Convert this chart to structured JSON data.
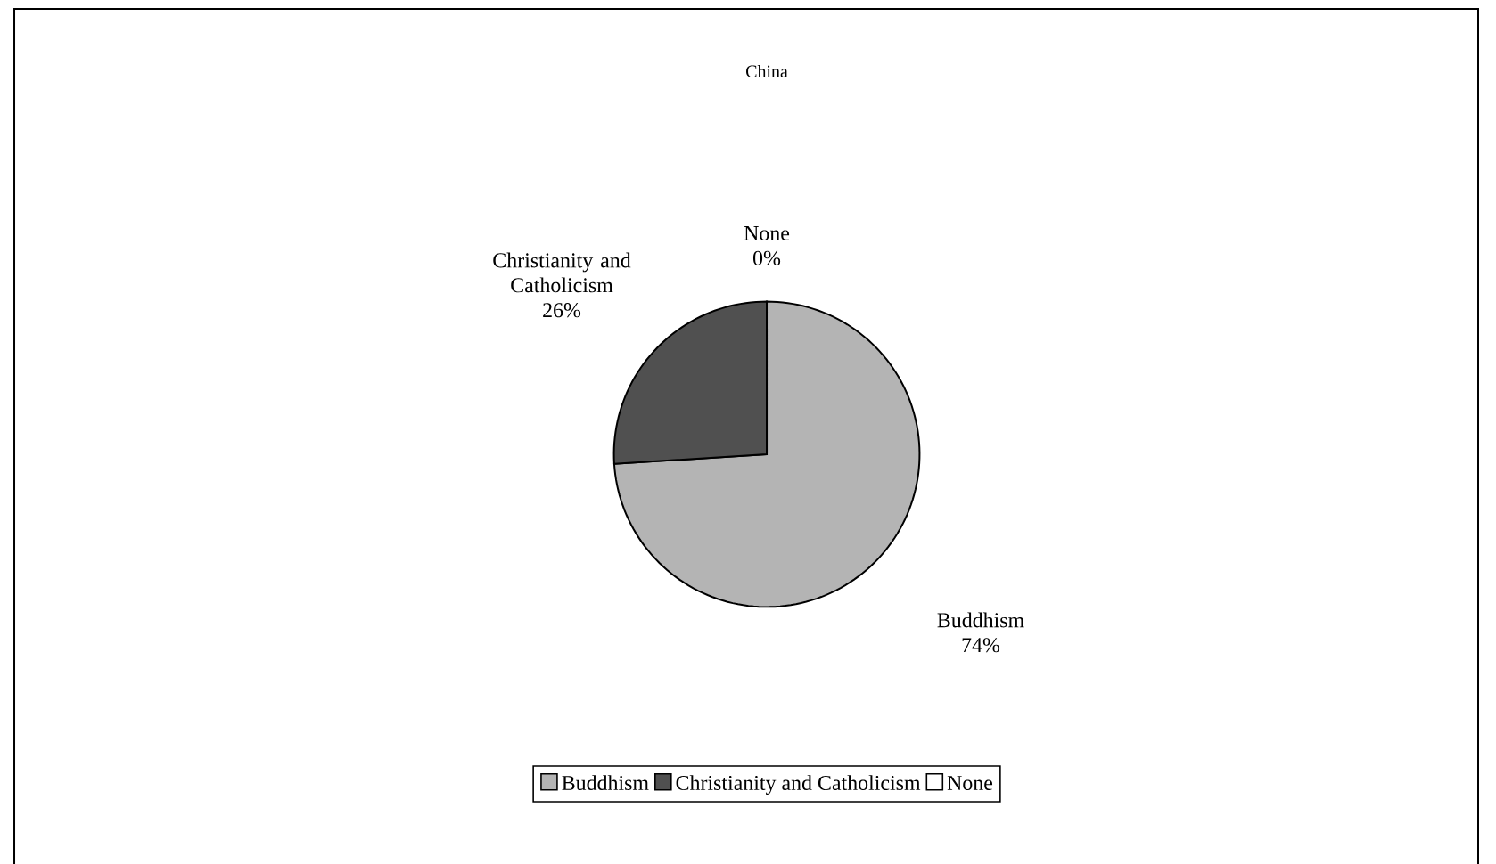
{
  "chart_data": {
    "type": "pie",
    "title": "China",
    "categories": [
      "Buddhism",
      "Christianity and Catholicism",
      "None"
    ],
    "values": [
      74,
      26,
      0
    ],
    "colors": [
      "#b4b4b4",
      "#505050",
      "#ffffff"
    ],
    "value_labels": [
      "74%",
      "26%",
      "0%"
    ],
    "legend": "bottom"
  }
}
